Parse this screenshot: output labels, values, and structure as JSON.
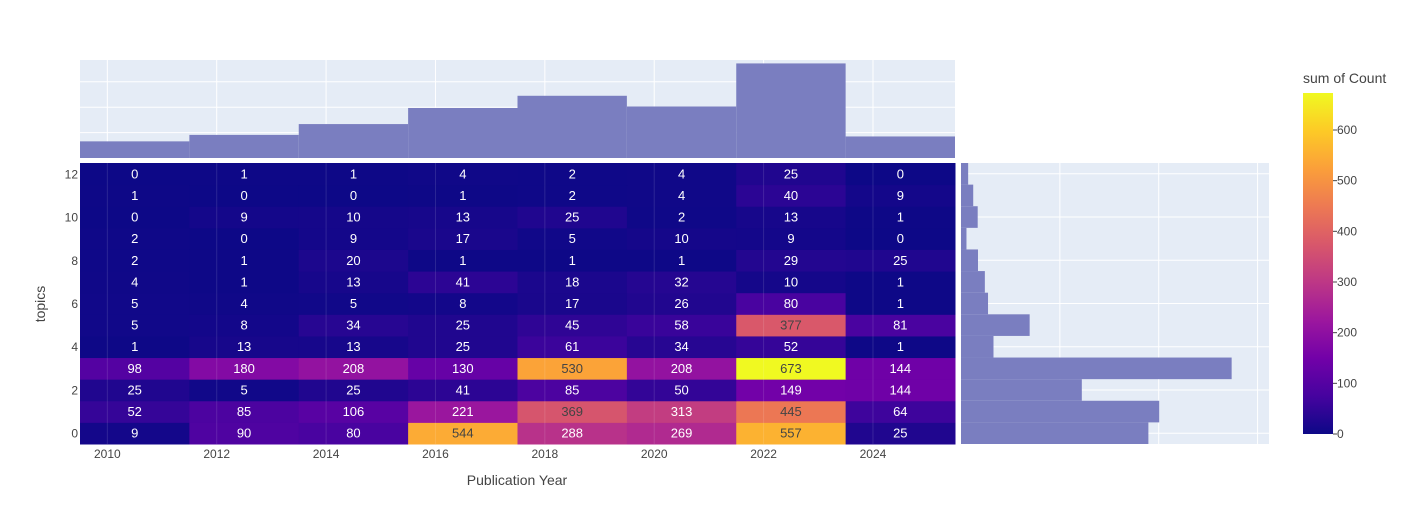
{
  "chart_data": {
    "type": "heatmap",
    "title": "",
    "xlabel": "Publication Year",
    "ylabel": "topics",
    "x_bins": [
      "2010",
      "2012",
      "2014",
      "2016",
      "2018",
      "2020",
      "2022",
      "2024"
    ],
    "x_ticks": [
      "2010",
      "2012",
      "2014",
      "2016",
      "2018",
      "2020",
      "2022",
      "2024"
    ],
    "y_categories": [
      0,
      1,
      2,
      3,
      4,
      5,
      6,
      7,
      8,
      9,
      10,
      11,
      12
    ],
    "y_ticks": [
      "0",
      "2",
      "4",
      "6",
      "8",
      "10",
      "12"
    ],
    "z": [
      [
        9,
        90,
        80,
        544,
        288,
        269,
        557,
        25
      ],
      [
        52,
        85,
        106,
        221,
        369,
        313,
        445,
        64
      ],
      [
        25,
        5,
        25,
        41,
        85,
        50,
        149,
        144
      ],
      [
        98,
        180,
        208,
        130,
        530,
        208,
        673,
        144
      ],
      [
        1,
        13,
        13,
        25,
        61,
        34,
        52,
        1
      ],
      [
        5,
        8,
        34,
        25,
        45,
        58,
        377,
        81
      ],
      [
        5,
        4,
        5,
        8,
        17,
        26,
        80,
        1
      ],
      [
        4,
        1,
        13,
        41,
        18,
        32,
        10,
        1
      ],
      [
        2,
        1,
        20,
        1,
        1,
        1,
        29,
        25
      ],
      [
        2,
        0,
        9,
        17,
        5,
        10,
        9,
        0
      ],
      [
        0,
        9,
        10,
        13,
        25,
        2,
        13,
        1
      ],
      [
        1,
        0,
        0,
        1,
        2,
        4,
        40,
        9
      ],
      [
        0,
        1,
        1,
        4,
        2,
        4,
        25,
        0
      ]
    ],
    "zlim": [
      0,
      673
    ],
    "colorbar": {
      "title": "sum of Count",
      "ticks": [
        "0",
        "100",
        "200",
        "300",
        "400",
        "500",
        "600"
      ],
      "colorscale": [
        "#0d0887",
        "#46039f",
        "#7201a8",
        "#9c179e",
        "#bd3786",
        "#d8576b",
        "#ed7953",
        "#fb9f3a",
        "#fdca26",
        "#f0f921"
      ]
    },
    "marginal_x": {
      "type": "histogram",
      "values": [
        180,
        250,
        367,
        541,
        673,
        557,
        1023,
        233
      ]
    },
    "marginal_y": {
      "type": "histogram",
      "values": [
        1886,
        1995,
        1216,
        2724,
        327,
        691,
        272,
        240,
        171,
        55,
        168,
        123,
        72
      ]
    },
    "grid": true,
    "colors": {
      "panel_bg": "#e5ecf6",
      "grid": "#ffffff",
      "bar": "#7a7ec0",
      "text": "#444444"
    }
  }
}
